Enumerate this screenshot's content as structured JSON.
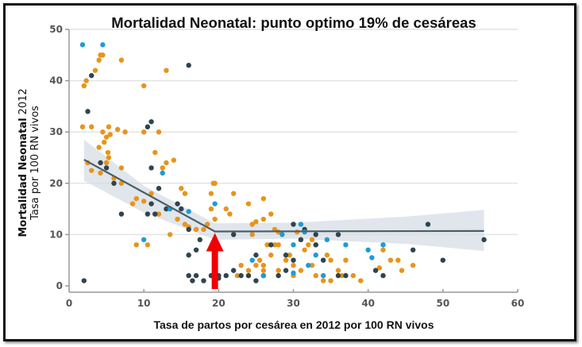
{
  "chart_data": {
    "type": "scatter",
    "title": "Mortalidad Neonatal: punto optimo 19% de cesáreas",
    "xlabel": "Tasa de partos por cesárea en 2012 por 100 RN vivos",
    "ylabel_line1_bold": "Mortalidad Neonatal",
    "ylabel_line1_year": "2012",
    "ylabel_line2": "Tasa por 100 RN vivos",
    "xlim": [
      0,
      60
    ],
    "ylim": [
      0,
      50
    ],
    "xticks": [
      "0",
      "10",
      "20",
      "30",
      "40",
      "50",
      "60"
    ],
    "yticks": [
      "0",
      "10",
      "20",
      "30",
      "40",
      "50"
    ],
    "grid": "horizontal",
    "colors": {
      "orange": "#E8941A",
      "dark": "#2E4450",
      "blue": "#1E9BD7",
      "fit": "#4A5E66",
      "band": "#D5DDE4",
      "arrow": "#F00000"
    },
    "fit_line": [
      [
        2,
        24.6
      ],
      [
        19.5,
        10.6
      ],
      [
        55.5,
        10.7
      ]
    ],
    "confidence_band_upper": [
      [
        2,
        28.5
      ],
      [
        10,
        19.5
      ],
      [
        19.5,
        12.2
      ],
      [
        30,
        12.3
      ],
      [
        45,
        13.5
      ],
      [
        55.5,
        14.8
      ]
    ],
    "confidence_band_lower": [
      [
        2,
        20.5
      ],
      [
        10,
        14.3
      ],
      [
        19.5,
        9.0
      ],
      [
        30,
        9.2
      ],
      [
        45,
        8.2
      ],
      [
        55.5,
        6.8
      ]
    ],
    "annotation": {
      "type": "arrow",
      "x": 19.5,
      "label": "punto optimo 19%"
    },
    "series": [
      {
        "name": "orange",
        "points": [
          [
            2,
            39
          ],
          [
            2.3,
            40
          ],
          [
            4,
            44
          ],
          [
            4.5,
            45
          ],
          [
            4.2,
            45
          ],
          [
            3.5,
            42
          ],
          [
            13,
            42
          ],
          [
            7,
            44
          ],
          [
            1.8,
            31
          ],
          [
            3,
            31
          ],
          [
            4.5,
            30
          ],
          [
            5.5,
            29.5
          ],
          [
            7.5,
            30
          ],
          [
            6.5,
            30.5
          ],
          [
            5.3,
            31
          ],
          [
            5,
            29
          ],
          [
            4.7,
            28
          ],
          [
            4,
            27
          ],
          [
            5.2,
            26
          ],
          [
            5,
            24
          ],
          [
            5.3,
            25
          ],
          [
            7,
            23
          ],
          [
            2.5,
            24
          ],
          [
            3,
            22.5
          ],
          [
            4.2,
            22
          ],
          [
            6,
            21
          ],
          [
            7,
            20
          ],
          [
            10,
            39
          ],
          [
            10,
            30
          ],
          [
            12,
            30
          ],
          [
            11.5,
            26
          ],
          [
            12.5,
            23
          ],
          [
            13,
            24
          ],
          [
            14,
            24.5
          ],
          [
            15,
            19
          ],
          [
            15.5,
            18
          ],
          [
            9,
            17
          ],
          [
            8.5,
            16
          ],
          [
            11,
            18
          ],
          [
            10,
            16.5
          ],
          [
            14.5,
            13
          ],
          [
            15.5,
            12
          ],
          [
            11.5,
            14
          ],
          [
            12,
            14
          ],
          [
            13.5,
            10
          ],
          [
            16,
            11.5
          ],
          [
            17,
            11
          ],
          [
            18.5,
            12
          ],
          [
            19.5,
            13
          ],
          [
            19.5,
            20
          ],
          [
            19,
            18
          ],
          [
            22,
            18
          ],
          [
            24,
            16
          ],
          [
            26,
            17
          ],
          [
            19,
            15
          ],
          [
            21,
            15
          ],
          [
            21.5,
            14
          ],
          [
            24.5,
            12
          ],
          [
            27,
            14
          ],
          [
            26,
            13
          ],
          [
            25,
            12.5
          ],
          [
            24.5,
            10
          ],
          [
            27.5,
            11
          ],
          [
            28,
            10.5
          ],
          [
            30.5,
            10.5
          ],
          [
            31,
            9
          ],
          [
            32,
            8
          ],
          [
            32.5,
            9
          ],
          [
            31.5,
            7
          ],
          [
            29.5,
            6
          ],
          [
            28,
            8
          ],
          [
            27.5,
            8
          ],
          [
            26.5,
            8
          ],
          [
            27,
            6
          ],
          [
            33,
            8
          ],
          [
            35,
            5
          ],
          [
            34.5,
            6
          ],
          [
            36,
            3
          ],
          [
            36.5,
            2
          ],
          [
            35,
            1
          ],
          [
            30,
            2
          ],
          [
            28,
            3
          ],
          [
            26,
            3
          ],
          [
            25,
            4
          ],
          [
            24,
            2
          ],
          [
            22.5,
            2
          ],
          [
            23,
            4
          ],
          [
            24,
            3
          ],
          [
            25.5,
            5
          ],
          [
            26,
            4
          ],
          [
            29,
            5
          ],
          [
            30,
            4
          ],
          [
            31,
            3
          ],
          [
            33,
            2
          ],
          [
            34,
            1
          ],
          [
            32.5,
            4
          ],
          [
            37,
            5
          ],
          [
            38,
            2
          ],
          [
            39,
            1
          ],
          [
            9,
            8
          ],
          [
            10.5,
            8
          ],
          [
            18,
            11
          ],
          [
            19.3,
            20
          ],
          [
            44,
            5
          ],
          [
            44.5,
            3
          ],
          [
            42,
            7
          ],
          [
            43,
            5
          ],
          [
            46,
            4
          ],
          [
            41.5,
            3.5
          ]
        ]
      },
      {
        "name": "dark",
        "points": [
          [
            2.5,
            34
          ],
          [
            3,
            41
          ],
          [
            4.2,
            24
          ],
          [
            5,
            23
          ],
          [
            6,
            20
          ],
          [
            7,
            14
          ],
          [
            10.5,
            31
          ],
          [
            11,
            32
          ],
          [
            16,
            43
          ],
          [
            11,
            23
          ],
          [
            12,
            19
          ],
          [
            11,
            16
          ],
          [
            11.5,
            14
          ],
          [
            10.5,
            14
          ],
          [
            13,
            15
          ],
          [
            15,
            15
          ],
          [
            14.5,
            16
          ],
          [
            16,
            11
          ],
          [
            17.5,
            9
          ],
          [
            17,
            7
          ],
          [
            16,
            6
          ],
          [
            16,
            2
          ],
          [
            16.5,
            1
          ],
          [
            17,
            2
          ],
          [
            18,
            1
          ],
          [
            19,
            2
          ],
          [
            19.5,
            2
          ],
          [
            20,
            2
          ],
          [
            21,
            2
          ],
          [
            22,
            3
          ],
          [
            19.5,
            9
          ],
          [
            20,
            1.5
          ],
          [
            22,
            10
          ],
          [
            25,
            6
          ],
          [
            27,
            8
          ],
          [
            29,
            3
          ],
          [
            30,
            12
          ],
          [
            31,
            9
          ],
          [
            33,
            10
          ],
          [
            33,
            8
          ],
          [
            34,
            5
          ],
          [
            30,
            5
          ],
          [
            29,
            6
          ],
          [
            28,
            2
          ],
          [
            26,
            2
          ],
          [
            24,
            2
          ],
          [
            23,
            2
          ],
          [
            25,
            1
          ],
          [
            36,
            2
          ],
          [
            37,
            2
          ],
          [
            36,
            10
          ],
          [
            46,
            7
          ],
          [
            48,
            12
          ],
          [
            50,
            5
          ],
          [
            55.5,
            9
          ],
          [
            41,
            3
          ],
          [
            42,
            2
          ],
          [
            2,
            1
          ],
          [
            31.5,
            11
          ]
        ]
      },
      {
        "name": "blue",
        "points": [
          [
            1.8,
            47
          ],
          [
            4.5,
            47
          ],
          [
            12.5,
            22
          ],
          [
            13.5,
            15
          ],
          [
            16,
            14.5
          ],
          [
            19.5,
            16
          ],
          [
            10,
            9
          ],
          [
            24.5,
            5
          ],
          [
            26,
            2
          ],
          [
            31,
            12
          ],
          [
            28.5,
            10
          ],
          [
            30,
            8
          ],
          [
            32,
            4
          ],
          [
            33,
            6
          ],
          [
            34,
            2
          ],
          [
            30,
            2.5
          ],
          [
            34.5,
            9
          ],
          [
            37,
            8
          ],
          [
            40,
            7
          ],
          [
            40.5,
            5.5
          ],
          [
            42,
            8
          ],
          [
            31.5,
            10.5
          ]
        ]
      }
    ]
  }
}
